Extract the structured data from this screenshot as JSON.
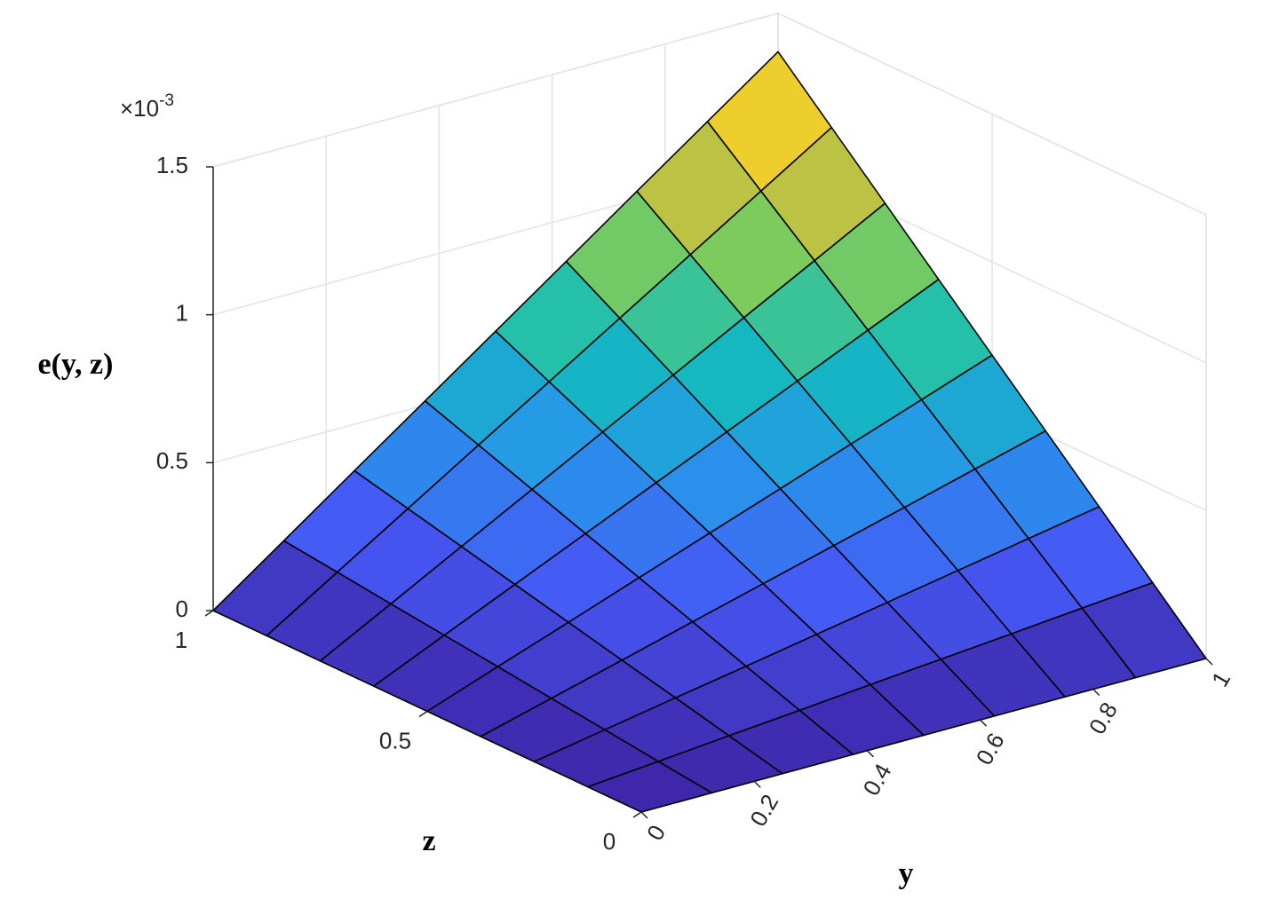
{
  "chart_data": {
    "type": "surface",
    "x_label": "y",
    "y_label": "z",
    "z_label": "e(y, z)",
    "x": [
      0,
      0.125,
      0.25,
      0.375,
      0.5,
      0.625,
      0.75,
      0.875,
      1
    ],
    "y": [
      0,
      0.125,
      0.25,
      0.375,
      0.5,
      0.625,
      0.75,
      0.875,
      1
    ],
    "values": [
      [
        0,
        0,
        0,
        0,
        0,
        0,
        0,
        0,
        0
      ],
      [
        0,
        0.021,
        0.043,
        0.064,
        0.086,
        0.107,
        0.128,
        0.15,
        0.171
      ],
      [
        0,
        0.043,
        0.086,
        0.128,
        0.171,
        0.214,
        0.257,
        0.3,
        0.343
      ],
      [
        0,
        0.064,
        0.128,
        0.193,
        0.257,
        0.321,
        0.385,
        0.45,
        0.514
      ],
      [
        0,
        0.086,
        0.171,
        0.257,
        0.343,
        0.428,
        0.514,
        0.599,
        0.685
      ],
      [
        0,
        0.107,
        0.214,
        0.321,
        0.428,
        0.535,
        0.642,
        0.749,
        0.856
      ],
      [
        0,
        0.128,
        0.257,
        0.385,
        0.514,
        0.642,
        0.771,
        0.899,
        1.028
      ],
      [
        0,
        0.15,
        0.3,
        0.45,
        0.599,
        0.749,
        0.899,
        1.049,
        1.199
      ],
      [
        0,
        0.171,
        0.343,
        0.514,
        0.685,
        0.856,
        1.028,
        1.199,
        1.37
      ]
    ],
    "xlim": [
      0,
      1
    ],
    "ylim": [
      0,
      1
    ],
    "zlim": [
      0,
      1.5
    ],
    "xticks": [
      0,
      0.2,
      0.4,
      0.6,
      0.8,
      1
    ],
    "yticks": [
      0,
      0.5,
      1
    ],
    "zticks": [
      0,
      0.5,
      1,
      1.5
    ],
    "z_multiplier": "×10",
    "z_multiplier_exponent": "-3",
    "colormap": [
      "#3e26a8",
      "#4658f5",
      "#2796eb",
      "#12beb9",
      "#81cc59",
      "#e8bd35",
      "#f9fb14"
    ],
    "edge_color": "#000000",
    "grid": true
  }
}
